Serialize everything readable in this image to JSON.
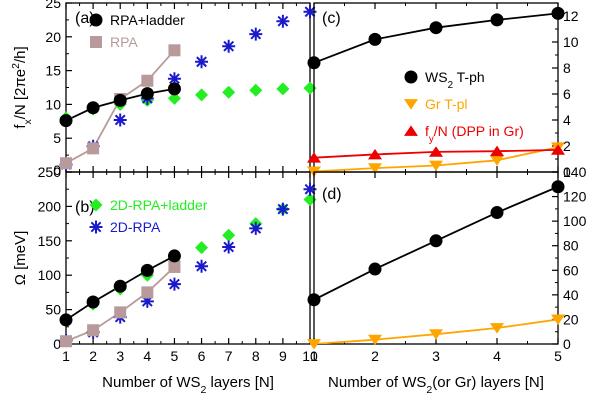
{
  "colors": {
    "black": "#000000",
    "rpa_brown": "#b89a9a",
    "green": "#22ee22",
    "blue": "#1a1acc",
    "orange": "#ffa500",
    "red": "#ee0000"
  },
  "chart_data": [
    {
      "panel": "(a)",
      "type": "scatter",
      "ylabel_parts": {
        "pre": "f",
        "sub": "x",
        "mid": "/N [2πe",
        "sup": "2",
        "post": "/h]"
      },
      "xlim": [
        1,
        10
      ],
      "ylim": [
        0,
        25
      ],
      "yticks": [
        "0",
        "5",
        "10",
        "15",
        "20",
        "25"
      ],
      "legend": [
        {
          "label": "RPA+ladder",
          "series": 0
        },
        {
          "label": "RPA",
          "series": 1
        }
      ],
      "series": [
        {
          "name": "RPA+ladder",
          "marker": "circle",
          "color": "#000000",
          "line": true,
          "x": [
            1,
            2,
            3,
            4,
            5
          ],
          "y": [
            7.6,
            9.5,
            10.6,
            11.6,
            12.3
          ]
        },
        {
          "name": "RPA",
          "marker": "square",
          "color": "#b89a9a",
          "line": true,
          "x": [
            1,
            2,
            3,
            4,
            5
          ],
          "y": [
            1.3,
            3.5,
            10.8,
            13.5,
            18.0
          ]
        },
        {
          "name": "2D-RPA+ladder",
          "marker": "diamond",
          "color": "#22ee22",
          "line": false,
          "x": [
            1,
            2,
            3,
            4,
            5,
            6,
            7,
            8,
            9,
            10
          ],
          "y": [
            8.0,
            9.3,
            10.0,
            10.6,
            10.9,
            11.4,
            11.8,
            12.1,
            12.3,
            12.4
          ]
        },
        {
          "name": "2D-RPA",
          "marker": "star",
          "color": "#1a1acc",
          "line": false,
          "x": [
            1,
            2,
            3,
            4,
            5,
            6,
            7,
            8,
            9,
            10
          ],
          "y": [
            1.1,
            3.8,
            7.7,
            10.9,
            13.8,
            16.3,
            18.6,
            20.4,
            22.3,
            23.7
          ]
        }
      ]
    },
    {
      "panel": "(b)",
      "type": "scatter",
      "ylabel": "Ω [meV]",
      "xlabel_parts": {
        "pre": "Number of WS",
        "sub": "2",
        "post": " layers [N]"
      },
      "xlim": [
        1,
        10
      ],
      "ylim": [
        0,
        250
      ],
      "xticks": [
        "1",
        "2",
        "3",
        "4",
        "5",
        "6",
        "7",
        "8",
        "9",
        "10"
      ],
      "yticks": [
        "0",
        "50",
        "100",
        "150",
        "200",
        "250"
      ],
      "legend": [
        {
          "label": "2D-RPA+ladder",
          "series": 2
        },
        {
          "label": "2D-RPA",
          "series": 3
        }
      ],
      "series": [
        {
          "name": "RPA+ladder",
          "marker": "circle",
          "color": "#000000",
          "line": true,
          "x": [
            1,
            2,
            3,
            4,
            5
          ],
          "y": [
            35,
            61,
            84,
            107,
            128
          ]
        },
        {
          "name": "RPA",
          "marker": "square",
          "color": "#b89a9a",
          "line": true,
          "x": [
            1,
            2,
            3,
            4,
            5
          ],
          "y": [
            4,
            20,
            46,
            75,
            112
          ]
        },
        {
          "name": "2D-RPA+ladder",
          "marker": "diamond",
          "color": "#22ee22",
          "line": false,
          "x": [
            1,
            2,
            3,
            4,
            5,
            6,
            7,
            8,
            9,
            10
          ],
          "y": [
            35,
            58,
            80,
            100,
            120,
            140,
            158,
            175,
            196,
            210
          ]
        },
        {
          "name": "2D-RPA",
          "marker": "star",
          "color": "#1a1acc",
          "line": false,
          "x": [
            1,
            2,
            3,
            4,
            5,
            6,
            7,
            8,
            9,
            10
          ],
          "y": [
            5,
            17,
            39,
            62,
            87,
            113,
            141,
            168,
            196,
            225
          ]
        }
      ]
    },
    {
      "panel": "(c)",
      "type": "line",
      "xlim": [
        1,
        5
      ],
      "ylim": [
        0,
        13
      ],
      "yticks": [
        "0",
        "2",
        "4",
        "6",
        "8",
        "10",
        "12"
      ],
      "legend": [
        {
          "parts": {
            "pre": "WS",
            "sub": "2",
            "post": " T-ph"
          },
          "series": 0
        },
        {
          "parts": {
            "pre": "Gr T-pl"
          },
          "series": 1
        },
        {
          "parts": {
            "pre": "f",
            "sub": "y",
            "post": "/N (DPP in Gr)"
          },
          "series": 2
        }
      ],
      "series": [
        {
          "name": "WS2 T-ph",
          "marker": "circle",
          "color": "#000000",
          "x": [
            1,
            2,
            3,
            4,
            5
          ],
          "y": [
            8.4,
            10.2,
            11.1,
            11.7,
            12.2
          ]
        },
        {
          "name": "Gr T-pl",
          "marker": "triangle-down",
          "color": "#ffa500",
          "x": [
            1,
            2,
            3,
            4,
            5
          ],
          "y": [
            0.05,
            0.3,
            0.5,
            0.9,
            1.9
          ]
        },
        {
          "name": "fy/N (DPP in Gr)",
          "marker": "triangle-up",
          "color": "#ee0000",
          "x": [
            1,
            2,
            3,
            4,
            5
          ],
          "y": [
            1.1,
            1.35,
            1.55,
            1.6,
            1.7
          ]
        }
      ]
    },
    {
      "panel": "(d)",
      "type": "line",
      "xlabel_parts": {
        "pre": "Number of WS",
        "sub": "2",
        "post": "(or Gr) layers [N]"
      },
      "xlim": [
        1,
        5
      ],
      "ylim": [
        0,
        140
      ],
      "xticks": [
        "1",
        "2",
        "3",
        "4",
        "5"
      ],
      "yticks": [
        "0",
        "20",
        "40",
        "60",
        "80",
        "100",
        "120",
        "140"
      ],
      "series": [
        {
          "name": "WS2 T-ph",
          "marker": "circle",
          "color": "#000000",
          "x": [
            1,
            2,
            3,
            4,
            5
          ],
          "y": [
            36,
            61,
            84,
            107,
            128
          ]
        },
        {
          "name": "Gr T-pl",
          "marker": "triangle-down",
          "color": "#ffa500",
          "x": [
            1,
            2,
            3,
            4,
            5
          ],
          "y": [
            0,
            3.5,
            8,
            13,
            20
          ]
        }
      ]
    }
  ]
}
